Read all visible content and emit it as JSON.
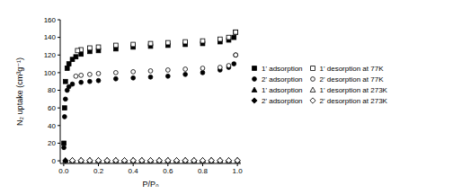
{
  "chart_data": {
    "type": "scatter",
    "x_label": "P/P₀",
    "y_label": "N₂ uptake (cm³g⁻¹)",
    "xlim": [
      -0.02,
      1.02
    ],
    "ylim": [
      -3,
      160
    ],
    "xticks": [
      {
        "value": 0,
        "label": "0.0"
      },
      0.2,
      0.4,
      0.6,
      0.8,
      {
        "value": 1,
        "label": "1.0"
      }
    ],
    "yticks": [
      0,
      20,
      40,
      60,
      80,
      100,
      120,
      140,
      160
    ],
    "legend": "right",
    "series": [
      {
        "name": "1' adsorption",
        "color": "#000000",
        "marker": "square",
        "x": [
          0.001,
          0.005,
          0.01,
          0.02,
          0.03,
          0.05,
          0.07,
          0.1,
          0.15,
          0.2,
          0.3,
          0.4,
          0.5,
          0.6,
          0.7,
          0.8,
          0.9,
          0.95,
          0.98,
          0.99
        ],
        "values": [
          20,
          60,
          90,
          105,
          110,
          115,
          118,
          121,
          124,
          125,
          127,
          129,
          130,
          131,
          132,
          133,
          135,
          137,
          140,
          146
        ]
      },
      {
        "name": "2' adsorption",
        "color": "#000000",
        "marker": "circle",
        "x": [
          0.001,
          0.005,
          0.01,
          0.02,
          0.03,
          0.05,
          0.1,
          0.15,
          0.2,
          0.3,
          0.4,
          0.5,
          0.6,
          0.7,
          0.8,
          0.9,
          0.95,
          0.98,
          0.99
        ],
        "values": [
          15,
          50,
          70,
          80,
          84,
          87,
          89,
          90,
          91,
          93,
          94,
          95,
          96,
          98,
          100,
          103,
          106,
          110,
          120
        ]
      },
      {
        "name": "1' adsorption",
        "color": "#000000",
        "marker": "triangle",
        "x": [
          0.01,
          0.05,
          0.1,
          0.15,
          0.2,
          0.25,
          0.3,
          0.35,
          0.4,
          0.45,
          0.5,
          0.55,
          0.6,
          0.65,
          0.7,
          0.75,
          0.8,
          0.85,
          0.9,
          0.95,
          1.0
        ],
        "values": [
          0.5,
          0.5,
          0.5,
          0.5,
          0.5,
          0.5,
          0.5,
          0.5,
          0.5,
          0.5,
          0.5,
          0.5,
          0.5,
          0.5,
          0.5,
          0.5,
          0.5,
          0.5,
          0.5,
          0.5,
          0.5
        ]
      },
      {
        "name": "2' adsorption",
        "color": "#000000",
        "marker": "diamond",
        "x": [
          0.01,
          0.05,
          0.1,
          0.15,
          0.2,
          0.25,
          0.3,
          0.35,
          0.4,
          0.45,
          0.5,
          0.55,
          0.6,
          0.65,
          0.7,
          0.75,
          0.8,
          0.85,
          0.9,
          0.95,
          1.0
        ],
        "values": [
          0.3,
          0.3,
          0.3,
          0.3,
          0.3,
          0.3,
          0.3,
          0.3,
          0.3,
          0.3,
          0.3,
          0.3,
          0.3,
          0.3,
          0.3,
          0.3,
          0.3,
          0.3,
          0.3,
          0.3,
          0.3
        ]
      },
      {
        "name": "1' desorption at 77K",
        "color": "#000000",
        "marker": "open-square",
        "x": [
          0.99,
          0.95,
          0.9,
          0.8,
          0.7,
          0.6,
          0.5,
          0.4,
          0.3,
          0.2,
          0.15,
          0.1,
          0.08
        ],
        "values": [
          146,
          140,
          138,
          136,
          135,
          134,
          133,
          132,
          131,
          129,
          128,
          126,
          125
        ]
      },
      {
        "name": "2' desorption at 77K",
        "color": "#000000",
        "marker": "open-circle",
        "x": [
          0.99,
          0.95,
          0.9,
          0.8,
          0.7,
          0.6,
          0.5,
          0.4,
          0.3,
          0.2,
          0.15,
          0.1,
          0.07
        ],
        "values": [
          120,
          108,
          106,
          105,
          104,
          103,
          102,
          101,
          100,
          99,
          98,
          97,
          96
        ]
      },
      {
        "name": "1' desorption at 273K",
        "color": "#000000",
        "marker": "open-triangle",
        "x": [
          1.0,
          0.95,
          0.9,
          0.85,
          0.8,
          0.75,
          0.7,
          0.65,
          0.6,
          0.55,
          0.5,
          0.45,
          0.4,
          0.35,
          0.3,
          0.25,
          0.2,
          0.15,
          0.1,
          0.05
        ],
        "values": [
          0.6,
          0.6,
          0.6,
          0.6,
          0.6,
          0.6,
          0.6,
          0.6,
          0.6,
          0.6,
          0.6,
          0.6,
          0.6,
          0.6,
          0.6,
          0.6,
          0.6,
          0.6,
          0.6,
          0.6
        ]
      },
      {
        "name": "2' desorption at 273K",
        "color": "#000000",
        "marker": "open-diamond",
        "x": [
          1.0,
          0.95,
          0.9,
          0.85,
          0.8,
          0.75,
          0.7,
          0.65,
          0.6,
          0.55,
          0.5,
          0.45,
          0.4,
          0.35,
          0.3,
          0.25,
          0.2,
          0.15,
          0.1,
          0.05
        ],
        "values": [
          0.4,
          0.4,
          0.4,
          0.4,
          0.4,
          0.4,
          0.4,
          0.4,
          0.4,
          0.4,
          0.4,
          0.4,
          0.4,
          0.4,
          0.4,
          0.4,
          0.4,
          0.4,
          0.4,
          0.4
        ]
      }
    ]
  }
}
